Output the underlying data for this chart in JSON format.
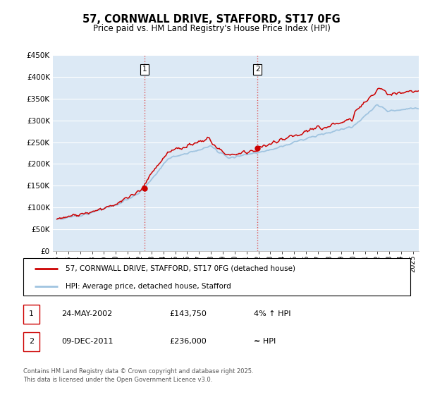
{
  "title": "57, CORNWALL DRIVE, STAFFORD, ST17 0FG",
  "subtitle": "Price paid vs. HM Land Registry's House Price Index (HPI)",
  "ylabel_ticks": [
    "£0",
    "£50K",
    "£100K",
    "£150K",
    "£200K",
    "£250K",
    "£300K",
    "£350K",
    "£400K",
    "£450K"
  ],
  "ytick_values": [
    0,
    50000,
    100000,
    150000,
    200000,
    250000,
    300000,
    350000,
    400000,
    450000
  ],
  "ylim": [
    0,
    450000
  ],
  "xlim_start": 1994.7,
  "xlim_end": 2025.5,
  "background_color": "#ffffff",
  "chart_bg_color": "#dce9f5",
  "grid_color": "#ffffff",
  "red_line_color": "#cc0000",
  "blue_line_color": "#a0c4e0",
  "vline_color": "#dd4444",
  "vline_style": ":",
  "marker1_x": 2002.4,
  "marker2_x": 2011.93,
  "marker1_label": "1",
  "marker2_label": "2",
  "legend_line1": "57, CORNWALL DRIVE, STAFFORD, ST17 0FG (detached house)",
  "legend_line2": "HPI: Average price, detached house, Stafford",
  "table_row1": [
    "1",
    "24-MAY-2002",
    "£143,750",
    "4% ↑ HPI"
  ],
  "table_row2": [
    "2",
    "09-DEC-2011",
    "£236,000",
    "≈ HPI"
  ],
  "footer": "Contains HM Land Registry data © Crown copyright and database right 2025.\nThis data is licensed under the Open Government Licence v3.0.",
  "xtick_years": [
    1995,
    1996,
    1997,
    1998,
    1999,
    2000,
    2001,
    2002,
    2003,
    2004,
    2005,
    2006,
    2007,
    2008,
    2009,
    2010,
    2011,
    2012,
    2013,
    2014,
    2015,
    2016,
    2017,
    2018,
    2019,
    2020,
    2021,
    2022,
    2023,
    2024,
    2025
  ]
}
